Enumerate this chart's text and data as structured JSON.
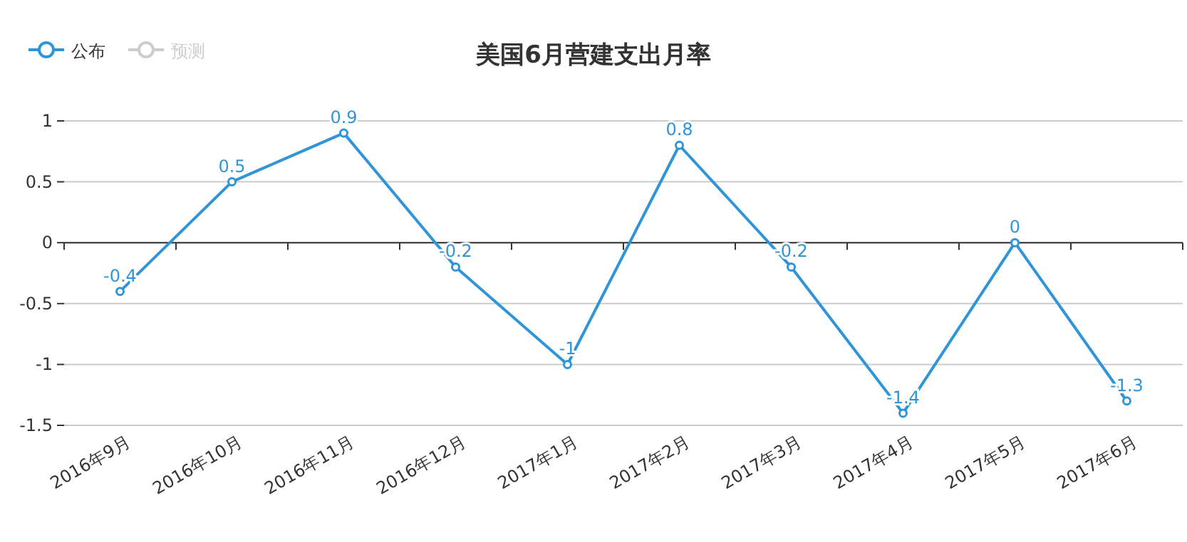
{
  "chart_data": {
    "type": "line",
    "title": "美国6月营建支出月率",
    "categories": [
      "2016年9月",
      "2016年10月",
      "2016年11月",
      "2016年12月",
      "2017年1月",
      "2017年2月",
      "2017年3月",
      "2017年4月",
      "2017年5月",
      "2017年6月"
    ],
    "series": [
      {
        "name": "公布",
        "color": "#2f95d8",
        "values": [
          -0.4,
          0.5,
          0.9,
          -0.2,
          -1,
          0.8,
          -0.2,
          -1.4,
          0,
          -1.3
        ]
      },
      {
        "name": "预测",
        "color": "#cccccc",
        "values": [
          null,
          null,
          null,
          null,
          null,
          null,
          null,
          null,
          null,
          null
        ]
      }
    ],
    "ylim": [
      -1.5,
      1
    ],
    "yticks": [
      -1.5,
      -1,
      -0.5,
      0,
      0.5,
      1
    ],
    "grid": "y",
    "legend": "top left",
    "marker": "circle",
    "data_labels": true
  }
}
